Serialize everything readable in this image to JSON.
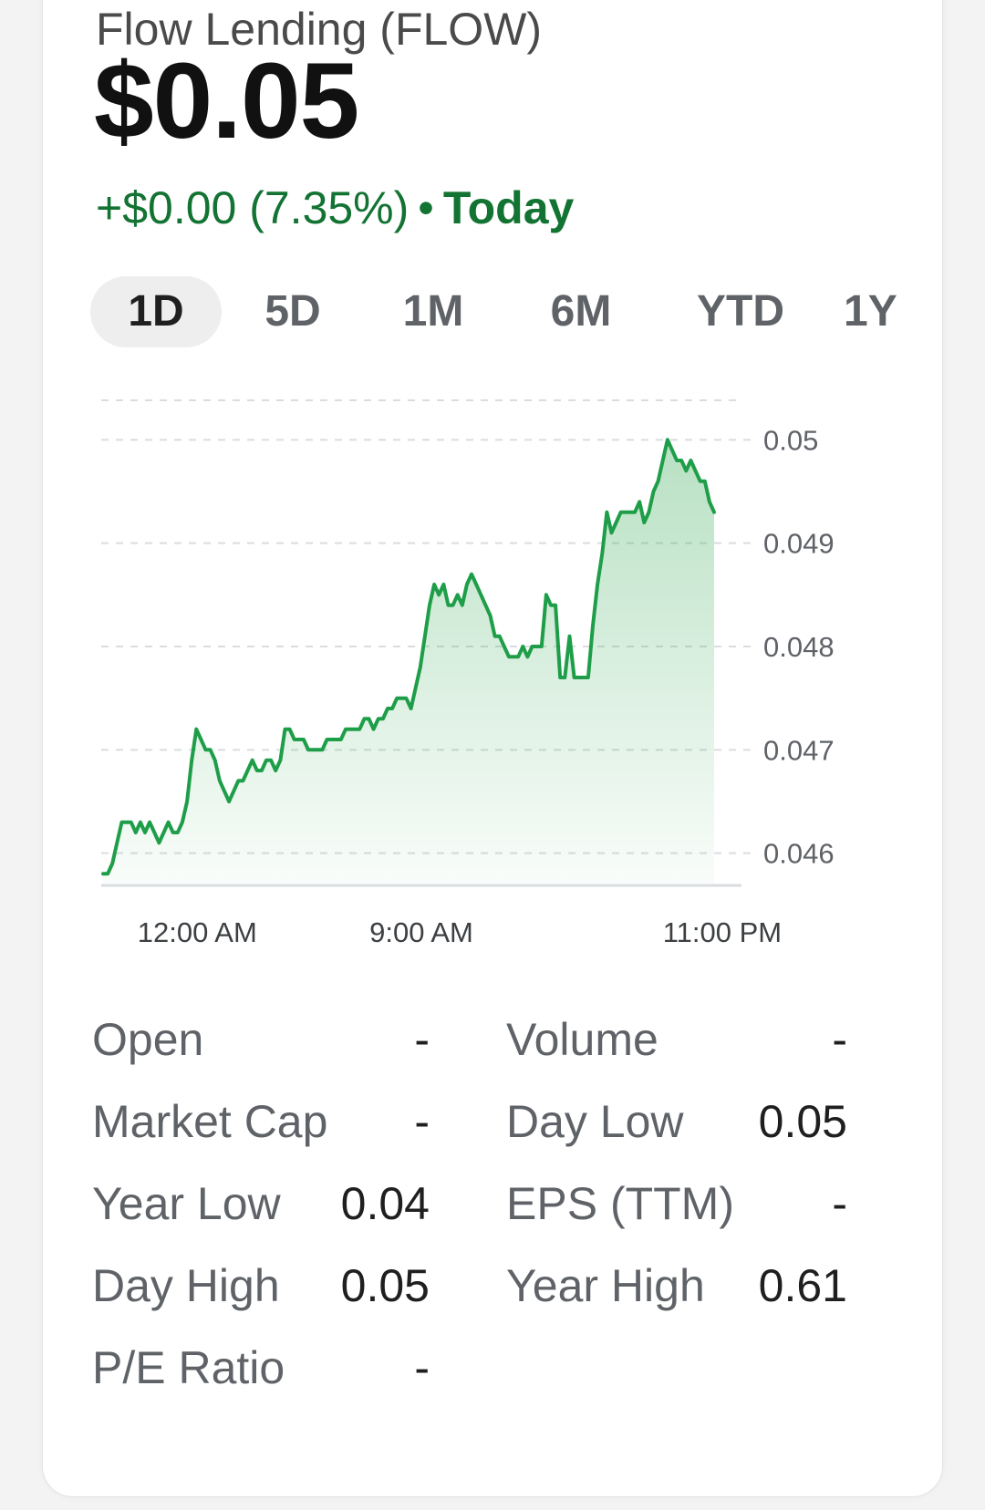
{
  "header": {
    "title": "Flow Lending (FLOW)",
    "price": "$0.05",
    "change": "+$0.00 (7.35%)",
    "separator": "•",
    "period": "Today"
  },
  "tabs": [
    {
      "label": "1D",
      "active": true
    },
    {
      "label": "5D",
      "active": false
    },
    {
      "label": "1M",
      "active": false
    },
    {
      "label": "6M",
      "active": false
    },
    {
      "label": "YTD",
      "active": false
    },
    {
      "label": "1Y",
      "active": false
    }
  ],
  "colors": {
    "positive": "#137333",
    "line": "#1e9e48",
    "fill": "#34a853",
    "grid": "#dadce0"
  },
  "chart_data": {
    "type": "area",
    "y_ticks": [
      "0.05",
      "0.049",
      "0.048",
      "0.047",
      "0.046"
    ],
    "y_tick_values": [
      0.05,
      0.049,
      0.048,
      0.047,
      0.046
    ],
    "x_ticks": [
      "12:00 AM",
      "9:00 AM",
      "11:00 PM"
    ],
    "x_tick_positions": [
      0.15,
      0.5,
      0.97
    ],
    "ylim": [
      0.04575,
      0.05055
    ],
    "grid": true,
    "series": [
      {
        "values": [
          0.0458,
          0.0458,
          0.0459,
          0.0461,
          0.0463,
          0.0463,
          0.0463,
          0.0462,
          0.0463,
          0.0462,
          0.0463,
          0.0462,
          0.0461,
          0.0462,
          0.0463,
          0.0462,
          0.0462,
          0.0463,
          0.0465,
          0.0469,
          0.0472,
          0.0471,
          0.047,
          0.047,
          0.0469,
          0.0467,
          0.0466,
          0.0465,
          0.0466,
          0.0467,
          0.0467,
          0.0468,
          0.0469,
          0.0468,
          0.0468,
          0.0469,
          0.0469,
          0.0468,
          0.0469,
          0.0472,
          0.0472,
          0.0471,
          0.0471,
          0.0471,
          0.047,
          0.047,
          0.047,
          0.047,
          0.0471,
          0.0471,
          0.0471,
          0.0471,
          0.0472,
          0.0472,
          0.0472,
          0.0472,
          0.0473,
          0.0473,
          0.0472,
          0.0473,
          0.0473,
          0.0474,
          0.0474,
          0.0475,
          0.0475,
          0.0475,
          0.0474,
          0.0476,
          0.0478,
          0.0481,
          0.0484,
          0.0486,
          0.0485,
          0.0486,
          0.0484,
          0.0484,
          0.0485,
          0.0484,
          0.0486,
          0.0487,
          0.0486,
          0.0485,
          0.0484,
          0.0483,
          0.0481,
          0.0481,
          0.048,
          0.0479,
          0.0479,
          0.0479,
          0.048,
          0.0479,
          0.048,
          0.048,
          0.048,
          0.0485,
          0.0484,
          0.0484,
          0.0477,
          0.0477,
          0.0481,
          0.0477,
          0.0477,
          0.0477,
          0.0477,
          0.0482,
          0.0486,
          0.0489,
          0.0493,
          0.0491,
          0.0492,
          0.0493,
          0.0493,
          0.0493,
          0.0493,
          0.0494,
          0.0492,
          0.0493,
          0.0495,
          0.0496,
          0.0498,
          0.05,
          0.0499,
          0.0498,
          0.0498,
          0.0497,
          0.0498,
          0.0497,
          0.0496,
          0.0496,
          0.0494,
          0.0493
        ]
      }
    ]
  },
  "stats": {
    "left": [
      {
        "label": "Open",
        "value": "-"
      },
      {
        "label": "Market Cap",
        "value": "-"
      },
      {
        "label": "Year Low",
        "value": "0.04"
      },
      {
        "label": "Day High",
        "value": "0.05"
      },
      {
        "label": "P/E Ratio",
        "value": "-"
      }
    ],
    "right": [
      {
        "label": "Volume",
        "value": "-"
      },
      {
        "label": "Day Low",
        "value": "0.05"
      },
      {
        "label": "EPS (TTM)",
        "value": "-"
      },
      {
        "label": "Year High",
        "value": "0.61"
      }
    ]
  }
}
